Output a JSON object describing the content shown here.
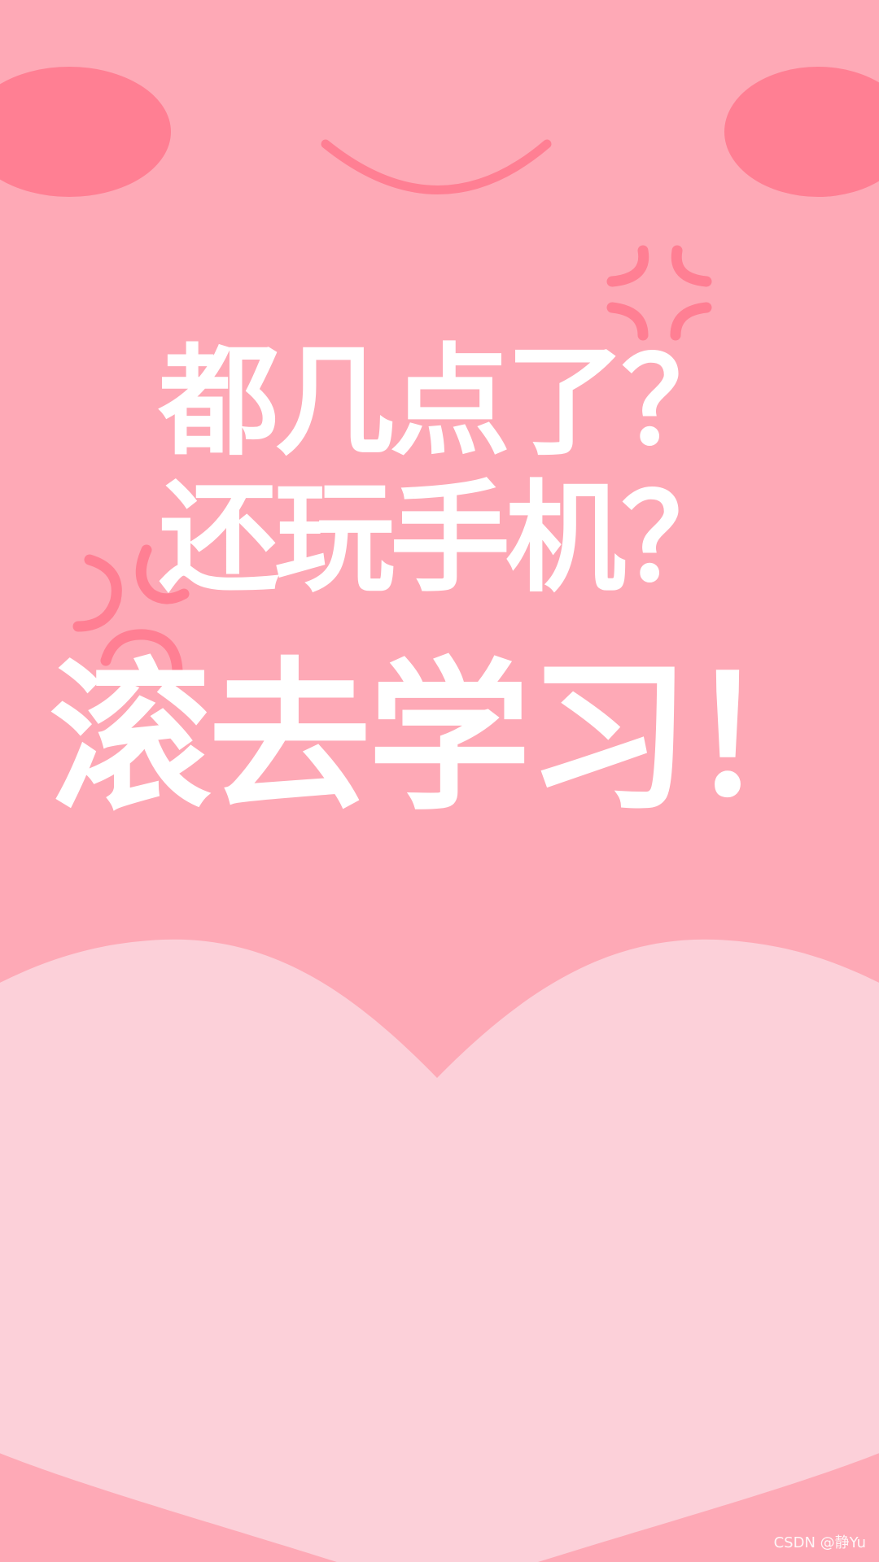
{
  "colors": {
    "background": "#fea9b6",
    "blush": "#ff7f93",
    "smile_and_marks": "#ff7f93",
    "heart": "#fcd0d9",
    "text": "#ffffff"
  },
  "poster": {
    "line_1": "都几点了？",
    "line_2": "还玩手机？",
    "line_3": "滚去学习！"
  },
  "watermark": {
    "text": "CSDN @静Yu"
  },
  "decorations": {
    "left_cheek": "blush-ellipse",
    "right_cheek": "blush-ellipse",
    "mouth": "smile-curve",
    "anger_mark_top_right": "anger-vein-icon",
    "anger_mark_left": "anger-vein-icon",
    "heart": "heart-shape"
  }
}
